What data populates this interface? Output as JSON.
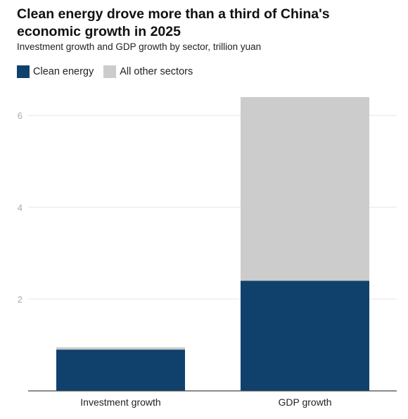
{
  "chart_data": {
    "type": "bar",
    "stacked": true,
    "title": "Clean energy drove more than a third of China's economic growth in 2025",
    "subtitle": "Investment growth and GDP growth by sector, trillion yuan",
    "xlabel": "",
    "ylabel": "",
    "categories": [
      "Investment growth",
      "GDP growth"
    ],
    "series": [
      {
        "name": "Clean energy",
        "values": [
          0.9,
          2.4
        ],
        "color": "#0f416c"
      },
      {
        "name": "All other sectors",
        "values": [
          0.05,
          4.0
        ],
        "color": "#cccccc"
      }
    ],
    "yticks": [
      2,
      4,
      6
    ],
    "ylim": [
      0,
      6.4
    ],
    "grid": true,
    "legend_position": "top-left"
  }
}
